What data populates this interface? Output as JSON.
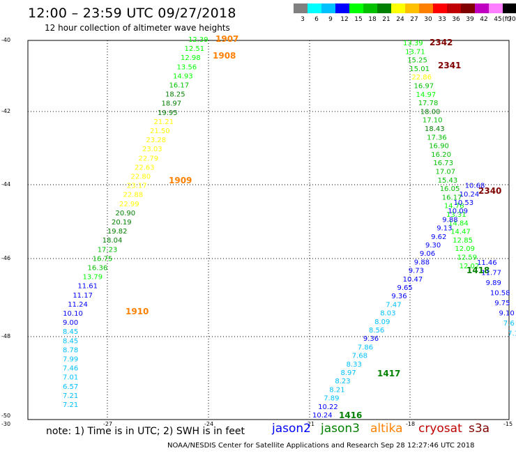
{
  "header": {
    "title": "12:00 – 23:59 UTC 09/27/2018",
    "subtitle": "12 hour collection of altimeter wave heights"
  },
  "colorbar": {
    "unit_label": "(ft)",
    "swatches": [
      "#808080",
      "#00ffff",
      "#00c0ff",
      "#0000ff",
      "#00ff00",
      "#00c000",
      "#008000",
      "#ffff00",
      "#ffc000",
      "#ff8000",
      "#ff0000",
      "#c00000",
      "#800000",
      "#c000c0",
      "#ff80ff",
      "#000000"
    ],
    "labels": [
      "3",
      "6",
      "9",
      "12",
      "15",
      "18",
      "21",
      "24",
      "27",
      "30",
      "33",
      "36",
      "39",
      "42",
      "45",
      "70"
    ]
  },
  "axes": {
    "lon_ticks": [
      "-27",
      "-24",
      "-21",
      "-18",
      "-15"
    ],
    "lat_ticks": [
      "-40",
      "-42",
      "-44",
      "-46",
      "-48",
      "-50"
    ],
    "corner_label": "-30"
  },
  "legend": {
    "note": "note:  1) Time is in UTC;  2) SWH is in feet",
    "satellites": [
      {
        "name": "jason2",
        "color": "#0000ff"
      },
      {
        "name": "jason3",
        "color": "#008000"
      },
      {
        "name": "altika",
        "color": "#ff8000"
      },
      {
        "name": "cryosat",
        "color": "#c00000"
      },
      {
        "name": "s3a",
        "color": "#800000"
      }
    ]
  },
  "footer": "NOAA/NESDIS Center for Satellite Applications and Research    Sep 28 12:27:46 UTC 2018",
  "tracks": {
    "left_track_values": [
      "12.39",
      "12.51",
      "12.98",
      "13.56",
      "14.93",
      "16.17",
      "18.25",
      "18.97",
      "19.95",
      "21.21",
      "21.50",
      "23.28",
      "23.03",
      "22.79",
      "22.63",
      "22.80",
      "23.17",
      "22.88",
      "22.99",
      "20.90",
      "20.19",
      "19.82",
      "18.04",
      "17.23",
      "16.75",
      "16.36",
      "13.79",
      "11.61",
      "11.17",
      "11.24",
      "10.10",
      "9.00",
      "8.45",
      "8.45",
      "8.78",
      "7.99",
      "7.46",
      "7.01",
      "6.57",
      "7.21",
      "7.21"
    ],
    "left_track_times": [
      "1907",
      "1908",
      "1909",
      "1910"
    ],
    "right_track_values": [
      "13.39",
      "13.71",
      "15.25",
      "15.01",
      "22.86",
      "16.97",
      "14.97",
      "17.78",
      "18.00",
      "17.10",
      "18.43",
      "17.36",
      "16.90",
      "16.20",
      "16.73",
      "17.07",
      "15.43",
      "16.05",
      "16.17",
      "14.76",
      "13.31",
      "14.84",
      "14.47",
      "12.85",
      "12.09",
      "12.59",
      "12.02"
    ],
    "right_track_times": [
      "2342",
      "2341",
      "2340"
    ],
    "diag_track_values": [
      "10.24",
      "10.22",
      "7.89",
      "8.21",
      "8.23",
      "8.97",
      "8.33",
      "7.68",
      "7.86",
      "9.36",
      "8.56",
      "8.09",
      "8.03",
      "7.47",
      "9.36",
      "9.65",
      "10.47",
      "9.73",
      "9.88",
      "9.06",
      "9.30",
      "9.62",
      "9.13",
      "9.88",
      "10.09",
      "10.53",
      "10.24",
      "10.68",
      "10.68",
      "10.59",
      "9.61",
      "9.58",
      "10.26",
      "10.55"
    ],
    "diag_track_times": [
      "1416",
      "1417",
      "1418"
    ],
    "far_right_values": [
      "11.46",
      "11.77",
      "9.89",
      "10.58",
      "9.75",
      "9.10",
      "7.6",
      "7.1",
      "7"
    ]
  }
}
